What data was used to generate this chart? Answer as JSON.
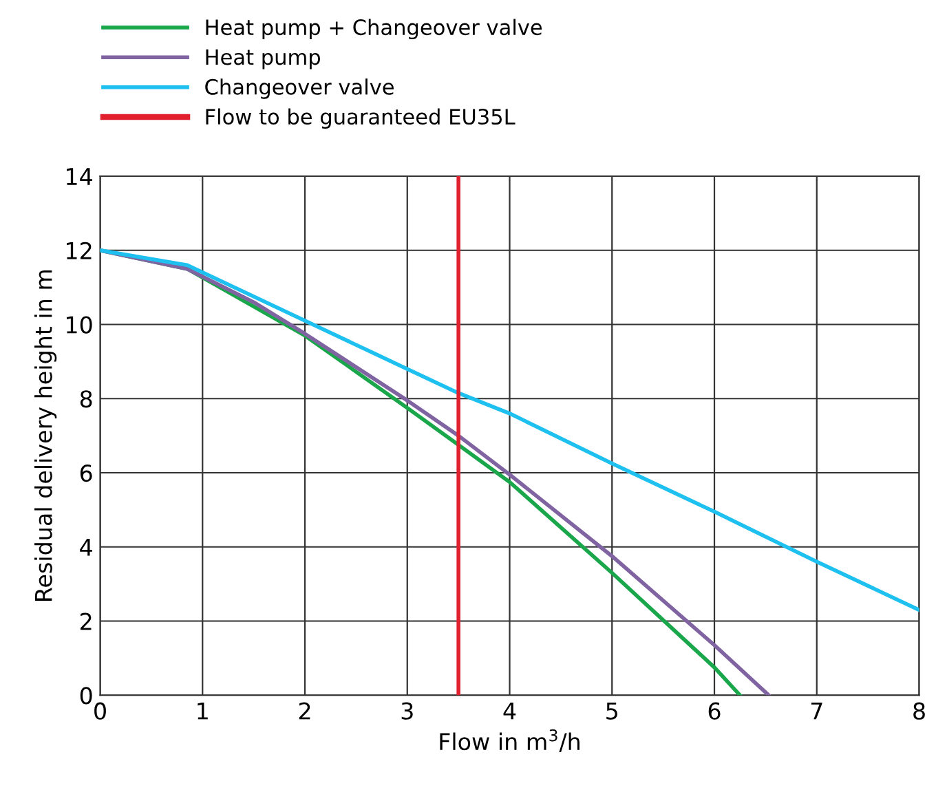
{
  "chart_data": {
    "type": "line",
    "xlabel": "Flow in m$^{3}$/h",
    "ylabel": "Residual delivery height in m",
    "series": [
      {
        "name": "Heat pump + Changeover valve",
        "color": "#1aa64a",
        "x": [
          0,
          0.85,
          2,
          3,
          3.5,
          4,
          5,
          6,
          6.25
        ],
        "values": [
          12,
          11.5,
          9.7,
          7.75,
          6.75,
          5.75,
          3.3,
          0.75,
          0
        ]
      },
      {
        "name": "Heat pump",
        "color": "#8064a2",
        "x": [
          0,
          0.85,
          1.5,
          2,
          3,
          3.5,
          4,
          5,
          6,
          6.53
        ],
        "values": [
          12,
          11.5,
          10.6,
          9.75,
          7.95,
          7.0,
          5.95,
          3.75,
          1.35,
          0
        ]
      },
      {
        "name": "Changeover valve",
        "color": "#1ec0ef",
        "x": [
          0,
          0.85,
          2,
          3,
          3.5,
          4,
          5,
          6,
          7,
          8
        ],
        "values": [
          12,
          11.6,
          10.1,
          8.8,
          8.15,
          7.6,
          6.25,
          4.95,
          3.6,
          2.3
        ]
      }
    ],
    "ref_lines": [
      {
        "axis": "x",
        "value": 3.5,
        "label": "Flow to be guaranteed EU35L",
        "color": "#e0202e"
      }
    ],
    "xlim": [
      0,
      8
    ],
    "xticks": [
      0,
      1,
      2,
      3,
      4,
      5,
      6,
      7,
      8
    ],
    "ylim": [
      0,
      14
    ],
    "yticks": [
      0,
      2,
      4,
      6,
      8,
      10,
      12,
      14
    ],
    "grid": true,
    "legend": "top left"
  }
}
